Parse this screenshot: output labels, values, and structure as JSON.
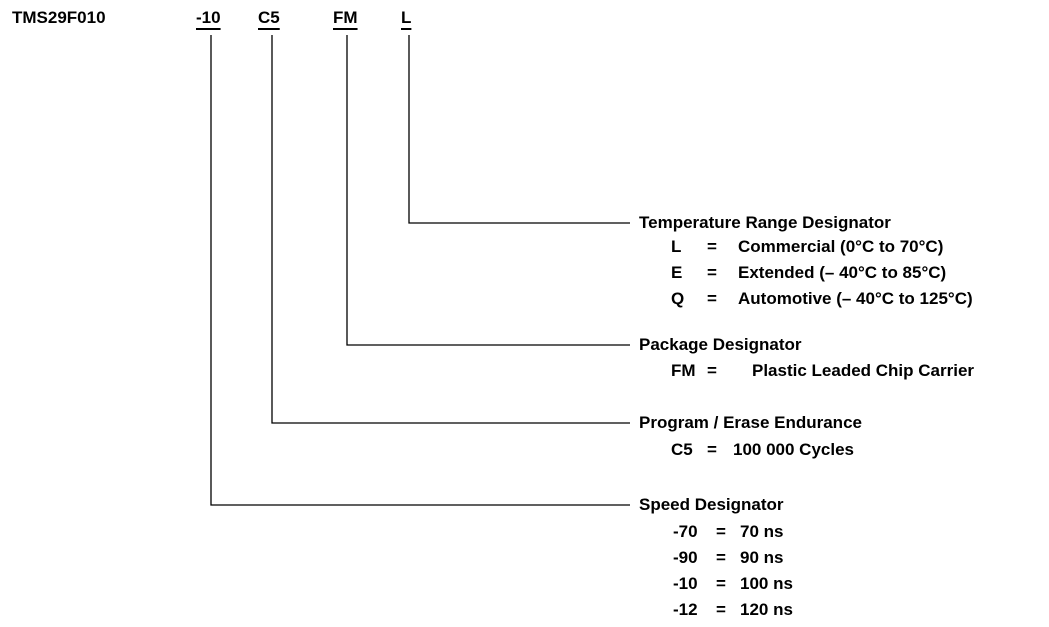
{
  "part_number": "TMS29F010",
  "segments": {
    "speed": "-10",
    "endurance": "C5",
    "package": "FM",
    "temperature": "L"
  },
  "groups": {
    "temperature": {
      "heading": "Temperature Range Designator",
      "entries": [
        {
          "code": "L",
          "eq": "=",
          "desc": "Commercial (0°C to 70°C)"
        },
        {
          "code": "E",
          "eq": "=",
          "desc": "Extended (– 40°C to 85°C)"
        },
        {
          "code": "Q",
          "eq": "=",
          "desc": "Automotive (– 40°C to 125°C)"
        }
      ]
    },
    "package": {
      "heading": "Package Designator",
      "entries": [
        {
          "code": "FM",
          "eq": "=",
          "desc": "Plastic Leaded Chip Carrier"
        }
      ]
    },
    "endurance": {
      "heading": "Program / Erase Endurance",
      "entries": [
        {
          "code": "C5",
          "eq": "=",
          "desc": "100 000 Cycles"
        }
      ]
    },
    "speed": {
      "heading": "Speed Designator",
      "entries": [
        {
          "code": "-70",
          "eq": "=",
          "desc": "70 ns"
        },
        {
          "code": "-90",
          "eq": "=",
          "desc": "90 ns"
        },
        {
          "code": "-10",
          "eq": "=",
          "desc": "100 ns"
        },
        {
          "code": "-12",
          "eq": "=",
          "desc": "120 ns"
        }
      ]
    }
  }
}
